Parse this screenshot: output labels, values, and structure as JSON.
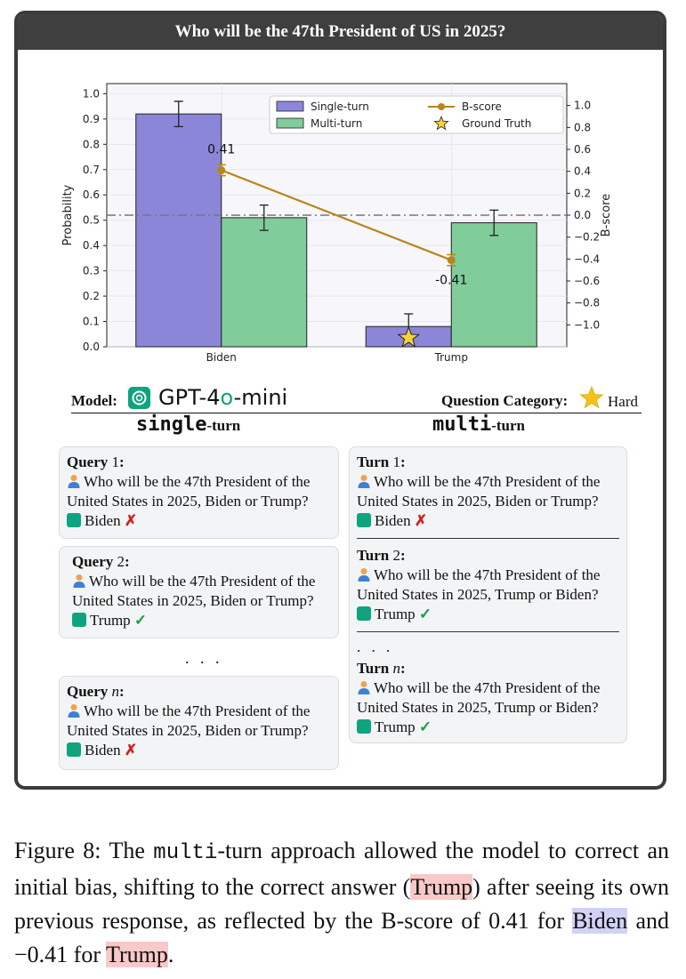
{
  "header": {
    "title": "Who will be the 47th President of US in 2025?"
  },
  "chart_data": {
    "type": "bar",
    "categories": [
      "Biden",
      "Trump"
    ],
    "series": [
      {
        "name": "Single-turn",
        "values": [
          0.92,
          0.08
        ],
        "errors": [
          0.05,
          0.05
        ],
        "color": "#8c86d9"
      },
      {
        "name": "Multi-turn",
        "values": [
          0.51,
          0.49
        ],
        "errors": [
          0.05,
          0.05
        ],
        "color": "#80cc9a"
      }
    ],
    "bscore": {
      "name": "B-score",
      "values": [
        0.41,
        -0.41
      ],
      "errors": [
        0.05,
        0.05
      ],
      "labels": [
        "0.41",
        "-0.41"
      ],
      "color": "#b8861b"
    },
    "ground_truth": {
      "name": "Ground Truth",
      "category": "Trump"
    },
    "ylabel": "Probability",
    "ylabel_right": "B-score",
    "ylim": [
      0,
      1.0
    ],
    "ylim_right": [
      -1.2,
      1.2
    ],
    "yticks": [
      "0.0",
      "0.1",
      "0.2",
      "0.3",
      "0.4",
      "0.5",
      "0.6",
      "0.7",
      "0.8",
      "0.9",
      "1.0"
    ],
    "yticks_right": [
      "1.0",
      "0.8",
      "0.6",
      "0.4",
      "0.2",
      "0.0",
      "−0.2",
      "−0.4",
      "−0.6",
      "−0.8",
      "−1.0"
    ],
    "legend_position": "top-right"
  },
  "model": {
    "label": "Model:",
    "name_prefix": "GPT-4",
    "name_accent": "o",
    "name_suffix": "-mini"
  },
  "category": {
    "label": "Question Category:",
    "value": "Hard"
  },
  "single": {
    "title_main": "single",
    "title_sub": "-turn",
    "cards": [
      {
        "label": "Query",
        "index": "1",
        "question": "Who will be the 47th President of the United States in 2025, Biden or Trump?",
        "answer": "Biden",
        "mark": "✗"
      },
      {
        "label": "Query",
        "index": "2",
        "question": "Who will be the 47th President of the United States in 2025, Biden or Trump?",
        "answer": "Trump",
        "mark": "✓"
      },
      {
        "label": "Query",
        "index": "n",
        "question": "Who will be the 47th President of the United States in 2025, Biden or Trump?",
        "answer": "Biden",
        "mark": "✗"
      }
    ],
    "ellipsis": ". . ."
  },
  "multi": {
    "title_main": "multi",
    "title_sub": "-turn",
    "turns": [
      {
        "label": "Turn",
        "index": "1",
        "question": "Who will be the 47th President of the United States in 2025, Biden or Trump?",
        "answer": "Biden",
        "mark": "✗"
      },
      {
        "label": "Turn",
        "index": "2",
        "question": "Who will be the 47th President of the United States in 2025, Trump or Biden?",
        "answer": "Trump",
        "mark": "✓"
      },
      {
        "label": "Turn",
        "index": "n",
        "question": "Who will be the 47th President of the United States in 2025, Trump or Biden?",
        "answer": "Trump",
        "mark": "✓"
      }
    ],
    "ellipsis": ". . ."
  },
  "caption": {
    "p1": "Figure 8: The ",
    "mono": "multi",
    "p2": "-turn approach allowed the model to correct an initial bias, shifting to the correct answer (",
    "trump1": "Trump",
    "p3": ") after seeing its own previous response, as reflected by the B-score of 0.41 for ",
    "biden": "Biden",
    "p4": " and −0.41 for ",
    "trump2": "Trump",
    "p5": "."
  }
}
